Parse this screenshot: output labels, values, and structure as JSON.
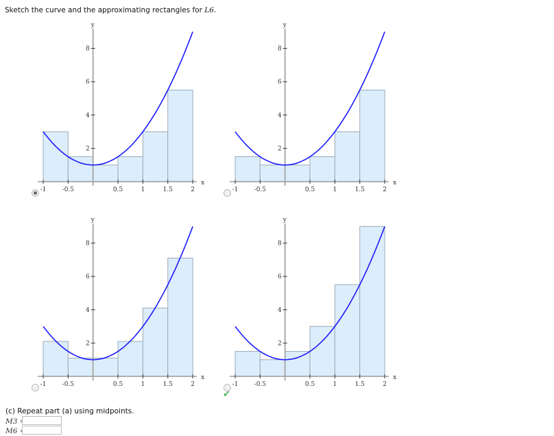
{
  "question": {
    "prompt": "Sketch the curve and the approximating rectangles for ",
    "prompt_var": "L6",
    "prompt_end": "."
  },
  "function": "1 + 2x^2",
  "axis": {
    "x_label": "x",
    "y_label": "y",
    "x_ticks": [
      "-1",
      "-0.5",
      "0.5",
      "1",
      "1.5",
      "2"
    ],
    "x_tick_values": [
      -1,
      -0.5,
      0.5,
      1,
      1.5,
      2
    ],
    "y_ticks": [
      "2",
      "4",
      "6",
      "8"
    ],
    "y_tick_values": [
      2,
      4,
      6,
      8
    ]
  },
  "colors": {
    "curve": "#1a1aff",
    "rect_fill": "#dcedfb",
    "rect_stroke": "#9aaab8",
    "check": "#4caf50"
  },
  "options": [
    {
      "selected": true,
      "heights": [
        3,
        1.5,
        1,
        1.5,
        3,
        5.5
      ]
    },
    {
      "selected": false,
      "heights": [
        1.5,
        1,
        1,
        1.5,
        3,
        5.5
      ]
    },
    {
      "selected": false,
      "heights": [
        2.1,
        1.1,
        1.1,
        2.1,
        4.1,
        7.1
      ]
    },
    {
      "selected": false,
      "heights": [
        1.5,
        1,
        1.5,
        3,
        5.5,
        9
      ]
    }
  ],
  "correct_mark": "✔",
  "part_c": {
    "text": "(c) Repeat part (a) using midpoints.",
    "m3_label": "M3 =",
    "m3_value": "",
    "m6_label": "M6 =",
    "m6_value": ""
  }
}
